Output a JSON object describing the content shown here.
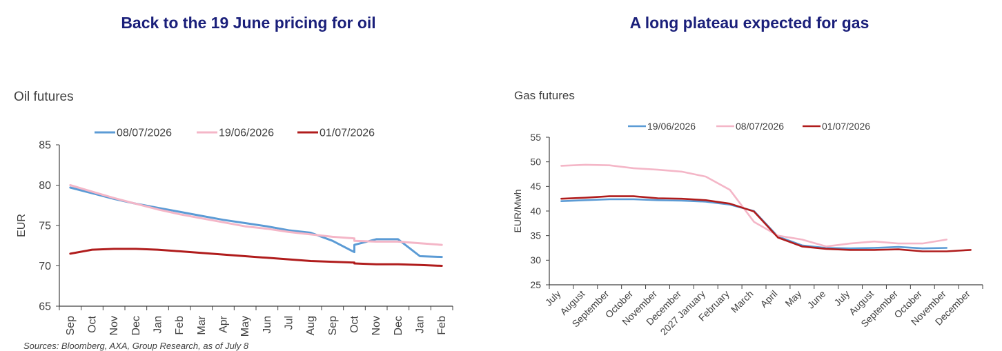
{
  "footnote": "Sources: Bloomberg, AXA, Group Research, as of July 8",
  "chart_data": [
    {
      "type": "line",
      "headline": "Back to the 19 June pricing for oil",
      "title": "Oil futures",
      "xlabel": "",
      "ylabel": "EUR",
      "ylim": [
        65,
        85
      ],
      "yticks": [
        65,
        70,
        75,
        80,
        85
      ],
      "categories": [
        "Sep",
        "Oct",
        "Nov",
        "Dec",
        "Jan",
        "Feb",
        "Mar",
        "Apr",
        "May",
        "Jun",
        "Jul",
        "Aug",
        "Sep",
        "Oct",
        "Nov",
        "Dec",
        "Jan",
        "Feb"
      ],
      "grid": false,
      "legend_position": "top",
      "series": [
        {
          "name": "08/07/2026",
          "color": "#5b9bd5",
          "x": [
            0,
            1,
            2,
            3,
            4,
            5,
            6,
            7,
            8,
            9,
            10,
            11,
            12,
            13,
            13,
            14,
            15,
            16,
            17
          ],
          "values": [
            79.7,
            79.0,
            78.3,
            77.7,
            77.2,
            76.7,
            76.2,
            75.7,
            75.3,
            74.9,
            74.4,
            74.1,
            73.1,
            71.7,
            72.6,
            73.3,
            73.3,
            71.2,
            71.1
          ]
        },
        {
          "name": "19/06/2026",
          "color": "#f4b6c7",
          "x": [
            0,
            1,
            2,
            3,
            4,
            5,
            6,
            7,
            8,
            9,
            10,
            11,
            12,
            13,
            13,
            14,
            15,
            16,
            17
          ],
          "values": [
            80.0,
            79.2,
            78.4,
            77.7,
            77.0,
            76.4,
            75.9,
            75.4,
            74.9,
            74.6,
            74.2,
            73.9,
            73.6,
            73.4,
            73.1,
            73.0,
            73.0,
            72.8,
            72.6
          ]
        },
        {
          "name": "01/07/2026",
          "color": "#b01c1c",
          "x": [
            0,
            1,
            2,
            3,
            4,
            5,
            6,
            7,
            8,
            9,
            10,
            11,
            12,
            13,
            13,
            14,
            15,
            16,
            17
          ],
          "values": [
            71.5,
            72.0,
            72.1,
            72.1,
            72.0,
            71.8,
            71.6,
            71.4,
            71.2,
            71.0,
            70.8,
            70.6,
            70.5,
            70.4,
            70.3,
            70.2,
            70.2,
            70.1,
            70.0
          ]
        }
      ]
    },
    {
      "type": "line",
      "headline": "A long plateau expected for gas",
      "title": "Gas futures",
      "xlabel": "",
      "ylabel": "EUR/Mwh",
      "ylim": [
        25,
        55
      ],
      "yticks": [
        25,
        30,
        35,
        40,
        45,
        50,
        55
      ],
      "categories": [
        "July",
        "August",
        "September",
        "October",
        "November",
        "December",
        "2027 January",
        "February",
        "March",
        "April",
        "May",
        "June",
        "July",
        "August",
        "September",
        "October",
        "November",
        "December"
      ],
      "grid": false,
      "legend_position": "top",
      "series": [
        {
          "name": "19/06/2026",
          "color": "#5b9bd5",
          "values": [
            42.0,
            42.2,
            42.4,
            42.4,
            42.2,
            42.1,
            41.9,
            41.3,
            40.0,
            34.8,
            33.0,
            32.5,
            32.4,
            32.5,
            32.7,
            32.4,
            32.5,
            null
          ]
        },
        {
          "name": "08/07/2026",
          "color": "#f4b6c7",
          "values": [
            49.2,
            49.4,
            49.3,
            48.7,
            48.4,
            48.0,
            47.0,
            44.3,
            37.8,
            35.0,
            34.2,
            32.8,
            33.4,
            33.8,
            33.4,
            33.4,
            34.2,
            null
          ]
        },
        {
          "name": "01/07/2026",
          "color": "#b01c1c",
          "values": [
            42.5,
            42.7,
            43.0,
            43.0,
            42.6,
            42.5,
            42.2,
            41.5,
            39.9,
            34.6,
            32.8,
            32.3,
            32.1,
            32.1,
            32.2,
            31.8,
            31.8,
            32.1
          ]
        }
      ]
    }
  ]
}
